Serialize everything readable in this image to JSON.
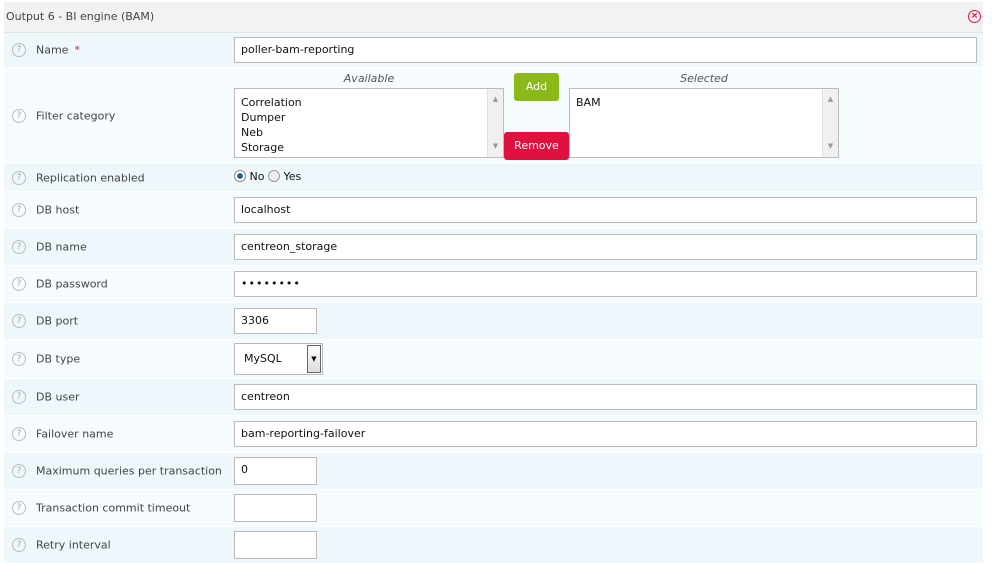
{
  "header": {
    "title": "Output 6 - BI engine (BAM)",
    "close_icon": "close-circle-icon"
  },
  "colors": {
    "add": "#8cb91a",
    "remove": "#e0103f",
    "required": "#e0103f"
  },
  "fields": {
    "name": {
      "label": "Name",
      "required_mark": "*",
      "value": "poller-bam-reporting"
    },
    "filter": {
      "label": "Filter category",
      "available_caption": "Available",
      "selected_caption": "Selected",
      "available": [
        "Correlation",
        "Dumper",
        "Neb",
        "Storage"
      ],
      "selected": [
        "BAM"
      ],
      "add_label": "Add",
      "remove_label": "Remove"
    },
    "replication": {
      "label": "Replication enabled",
      "options": [
        "No",
        "Yes"
      ],
      "selected": "No"
    },
    "db_host": {
      "label": "DB host",
      "value": "localhost"
    },
    "db_name": {
      "label": "DB name",
      "value": "centreon_storage"
    },
    "db_password": {
      "label": "DB password",
      "value": "••••••••"
    },
    "db_port": {
      "label": "DB port",
      "value": "3306"
    },
    "db_type": {
      "label": "DB type",
      "value": "MySQL"
    },
    "db_user": {
      "label": "DB user",
      "value": "centreon"
    },
    "failover": {
      "label": "Failover name",
      "value": "bam-reporting-failover"
    },
    "max_queries": {
      "label": "Maximum queries per transaction",
      "value": "0"
    },
    "commit_timeout": {
      "label": "Transaction commit timeout",
      "value": ""
    },
    "retry": {
      "label": "Retry interval",
      "value": ""
    }
  }
}
